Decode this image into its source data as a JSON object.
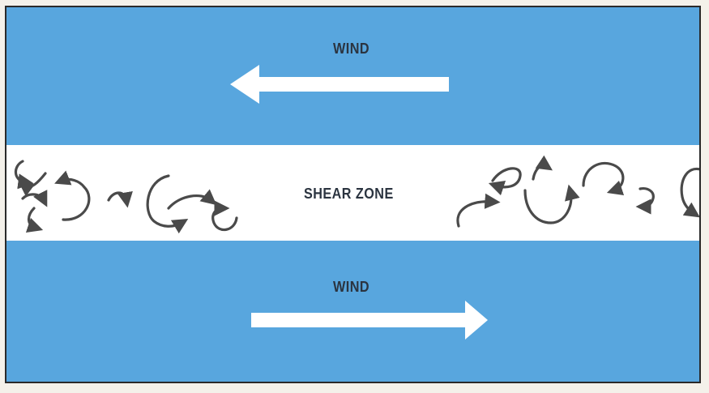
{
  "labels": {
    "wind_top": "WIND",
    "shear_zone": "SHEAR ZONE",
    "wind_bottom": "WIND"
  },
  "colors": {
    "sky": "#58a6de",
    "shear": "#ffffff",
    "arrow": "#ffffff",
    "eddy": "#4a4a4a",
    "text": "#2b3440"
  },
  "wind_top_direction": "left",
  "wind_bottom_direction": "right",
  "icons": [
    "wind-arrow-left-icon",
    "wind-arrow-right-icon",
    "eddy-icon"
  ]
}
